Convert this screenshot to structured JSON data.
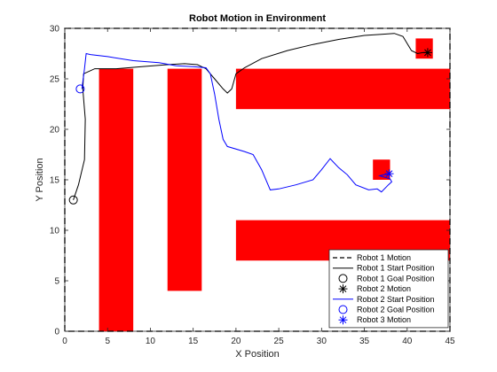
{
  "chart_data": {
    "type": "line",
    "title": "Robot Motion in Environment",
    "xlabel": "X Position",
    "ylabel": "Y Position",
    "xlim": [
      0,
      45
    ],
    "ylim": [
      0,
      30
    ],
    "xticks": [
      0,
      5,
      10,
      15,
      20,
      25,
      30,
      35,
      40,
      45
    ],
    "yticks": [
      0,
      5,
      10,
      15,
      20,
      25,
      30
    ],
    "grid": false,
    "legend_position": "bottom-right",
    "colors": {
      "obstacle": "#ff0000",
      "robot1": "#000000",
      "robot2": "#0000ff",
      "boundary": "#000000"
    },
    "obstacles": [
      {
        "x": [
          4,
          8
        ],
        "y": [
          0,
          26
        ]
      },
      {
        "x": [
          12,
          16
        ],
        "y": [
          4,
          26
        ]
      },
      {
        "x": [
          20,
          45
        ],
        "y": [
          22,
          26
        ]
      },
      {
        "x": [
          20,
          45
        ],
        "y": [
          7,
          11
        ]
      },
      {
        "x": [
          36,
          38
        ],
        "y": [
          15,
          17
        ]
      },
      {
        "x": [
          41,
          43
        ],
        "y": [
          27,
          29
        ]
      }
    ],
    "boundary": {
      "x": [
        0,
        45
      ],
      "y": [
        0,
        30
      ]
    },
    "robot1_path": {
      "x": [
        1,
        1.6,
        2.3,
        2.4,
        2.1,
        2.2,
        3.5,
        6,
        9,
        12,
        14,
        15.5,
        16.5,
        17.5,
        18.5,
        19,
        19.5,
        20,
        21,
        23,
        26,
        29,
        32,
        35,
        37,
        38.5,
        39.5,
        40,
        40.5,
        41.2,
        41.8,
        42.3
      ],
      "y": [
        13,
        14.5,
        17,
        21,
        24,
        25.5,
        26,
        26,
        26.2,
        26.4,
        26.5,
        26.4,
        26,
        25,
        24,
        23.6,
        24,
        25.5,
        26.1,
        27,
        27.8,
        28.4,
        28.9,
        29.3,
        29.4,
        29.5,
        29.2,
        28.5,
        27.8,
        27.5,
        27.6,
        27.6
      ]
    },
    "robot2_path": {
      "x": [
        2,
        2.3,
        2.5,
        3,
        5,
        8,
        11,
        13,
        15,
        16.5,
        17,
        17.5,
        18,
        18.5,
        19,
        21,
        22,
        23,
        24,
        25,
        27,
        29,
        30,
        31,
        32,
        33,
        34,
        35.5,
        36.5,
        37,
        37.8,
        38.2,
        38,
        37.2,
        36.8,
        37.3,
        38
      ],
      "y": [
        24,
        26,
        27.5,
        27.4,
        27.2,
        26.8,
        26.6,
        26.3,
        26.2,
        26.1,
        25.5,
        23.5,
        21,
        19,
        18.3,
        17.8,
        17.5,
        16,
        14,
        14.1,
        14.5,
        15,
        16,
        17.1,
        16.2,
        15.5,
        14.5,
        14,
        14.1,
        13.8,
        14.5,
        14.8,
        15.1,
        15.3,
        15.4,
        15.5,
        15.6
      ]
    },
    "markers": [
      {
        "name": "Robot 1 Start Position",
        "x": 1,
        "y": 13,
        "symbol": "circle",
        "color": "#000000"
      },
      {
        "name": "Robot 1 Goal Position",
        "x": 42.4,
        "y": 27.6,
        "symbol": "asterisk",
        "color": "#000000"
      },
      {
        "name": "Robot 2 Start Position",
        "x": 1.8,
        "y": 24,
        "symbol": "circle",
        "color": "#0000ff"
      },
      {
        "name": "Robot 2 Goal Position",
        "x": 37.9,
        "y": 15.6,
        "symbol": "asterisk",
        "color": "#0000ff"
      }
    ],
    "legend": [
      {
        "label": "Robot 1 Motion",
        "style": "dashed",
        "color": "#000000"
      },
      {
        "label": "Robot 1 Start Position",
        "style": "line",
        "color": "#000000"
      },
      {
        "label": "Robot 1 Goal Position",
        "style": "circle",
        "color": "#000000"
      },
      {
        "label": "Robot 2 Motion",
        "style": "asterisk",
        "color": "#000000"
      },
      {
        "label": "Robot 2 Start Position",
        "style": "line",
        "color": "#0000ff"
      },
      {
        "label": "Robot 2 Goal Position",
        "style": "circle",
        "color": "#0000ff"
      },
      {
        "label": "Robot 3 Motion",
        "style": "asterisk",
        "color": "#0000ff"
      }
    ]
  }
}
